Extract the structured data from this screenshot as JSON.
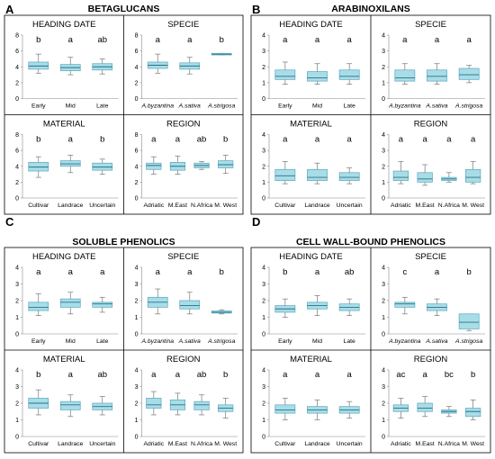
{
  "colors": {
    "box_fill": "#a8dde8",
    "box_stroke": "#5aa8bd",
    "median": "#2a6f85",
    "whisker": "#777777",
    "frame": "#000000"
  },
  "panels": [
    {
      "letter": "A",
      "title": "BETAGLUCANS",
      "subplots": [
        {
          "title": "HEADING DATE",
          "ylim": [
            0,
            8
          ],
          "yticks": [
            0,
            2,
            4,
            6,
            8
          ],
          "categories": [
            "Early",
            "Mid",
            "Late"
          ],
          "letters": [
            "b",
            "a",
            "ab"
          ],
          "boxes": [
            {
              "min": 3.2,
              "q1": 3.7,
              "median": 4.1,
              "q3": 4.6,
              "max": 5.6
            },
            {
              "min": 3.0,
              "q1": 3.5,
              "median": 3.9,
              "q3": 4.3,
              "max": 5.2
            },
            {
              "min": 3.1,
              "q1": 3.6,
              "median": 4.0,
              "q3": 4.4,
              "max": 5.0
            }
          ]
        },
        {
          "title": "SPECIE",
          "ylim": [
            0,
            8
          ],
          "yticks": [
            0,
            2,
            4,
            6,
            8
          ],
          "categories": [
            "A.byzantina",
            "A.sativa",
            "A.strigosa"
          ],
          "letters": [
            "a",
            "a",
            "b"
          ],
          "boxes": [
            {
              "min": 3.2,
              "q1": 3.8,
              "median": 4.2,
              "q3": 4.6,
              "max": 5.6
            },
            {
              "min": 3.1,
              "q1": 3.7,
              "median": 4.1,
              "q3": 4.5,
              "max": 5.2
            },
            {
              "min": 5.5,
              "q1": 5.5,
              "median": 5.6,
              "q3": 5.7,
              "max": 5.7
            }
          ]
        },
        {
          "title": "MATERIAL",
          "ylim": [
            0,
            8
          ],
          "yticks": [
            0,
            2,
            4,
            6,
            8
          ],
          "categories": [
            "Cultivar",
            "Landrace",
            "Uncertain"
          ],
          "letters": [
            "b",
            "a",
            "b"
          ],
          "boxes": [
            {
              "min": 2.6,
              "q1": 3.4,
              "median": 3.9,
              "q3": 4.5,
              "max": 5.2
            },
            {
              "min": 3.2,
              "q1": 4.0,
              "median": 4.3,
              "q3": 4.7,
              "max": 5.4
            },
            {
              "min": 3.0,
              "q1": 3.5,
              "median": 3.9,
              "q3": 4.4,
              "max": 4.9
            }
          ]
        },
        {
          "title": "REGION",
          "ylim": [
            0,
            8
          ],
          "yticks": [
            0,
            2,
            4,
            6,
            8
          ],
          "categories": [
            "Adriatic",
            "M.East",
            "N.Africa",
            "M. West"
          ],
          "letters": [
            "a",
            "a",
            "ab",
            "b"
          ],
          "boxes": [
            {
              "min": 3.0,
              "q1": 3.6,
              "median": 4.1,
              "q3": 4.4,
              "max": 5.2
            },
            {
              "min": 3.0,
              "q1": 3.5,
              "median": 4.0,
              "q3": 4.5,
              "max": 5.3
            },
            {
              "min": 3.6,
              "q1": 3.8,
              "median": 4.1,
              "q3": 4.4,
              "max": 4.6
            },
            {
              "min": 3.1,
              "q1": 3.8,
              "median": 4.2,
              "q3": 4.7,
              "max": 5.4
            }
          ]
        }
      ]
    },
    {
      "letter": "B",
      "title": "ARABINOXILANS",
      "subplots": [
        {
          "title": "HEADING DATE",
          "ylim": [
            0,
            4
          ],
          "yticks": [
            0,
            1,
            2,
            3,
            4
          ],
          "categories": [
            "Early",
            "Mid",
            "Late"
          ],
          "letters": [
            "a",
            "a",
            "a"
          ],
          "boxes": [
            {
              "min": 0.9,
              "q1": 1.2,
              "median": 1.4,
              "q3": 1.8,
              "max": 2.3
            },
            {
              "min": 0.9,
              "q1": 1.1,
              "median": 1.3,
              "q3": 1.7,
              "max": 2.2
            },
            {
              "min": 0.9,
              "q1": 1.2,
              "median": 1.4,
              "q3": 1.8,
              "max": 2.2
            }
          ]
        },
        {
          "title": "SPECIE",
          "ylim": [
            0,
            4
          ],
          "yticks": [
            0,
            1,
            2,
            3,
            4
          ],
          "categories": [
            "A.byzantina",
            "A.sativa",
            "A.strigosa"
          ],
          "letters": [
            "a",
            "a",
            "a"
          ],
          "boxes": [
            {
              "min": 0.9,
              "q1": 1.1,
              "median": 1.3,
              "q3": 1.8,
              "max": 2.2
            },
            {
              "min": 0.9,
              "q1": 1.1,
              "median": 1.4,
              "q3": 1.8,
              "max": 2.2
            },
            {
              "min": 1.0,
              "q1": 1.2,
              "median": 1.5,
              "q3": 1.9,
              "max": 2.1
            }
          ]
        },
        {
          "title": "MATERIAL",
          "ylim": [
            0,
            4
          ],
          "yticks": [
            0,
            1,
            2,
            3,
            4
          ],
          "categories": [
            "Cultivar",
            "Landrace",
            "Uncertain"
          ],
          "letters": [
            "a",
            "a",
            "a"
          ],
          "boxes": [
            {
              "min": 0.9,
              "q1": 1.1,
              "median": 1.4,
              "q3": 1.8,
              "max": 2.3
            },
            {
              "min": 0.9,
              "q1": 1.1,
              "median": 1.3,
              "q3": 1.8,
              "max": 2.2
            },
            {
              "min": 0.9,
              "q1": 1.1,
              "median": 1.3,
              "q3": 1.6,
              "max": 1.9
            }
          ]
        },
        {
          "title": "REGION",
          "ylim": [
            0,
            4
          ],
          "yticks": [
            0,
            1,
            2,
            3,
            4
          ],
          "categories": [
            "Adriatic",
            "M.East",
            "N.Africa",
            "M. West"
          ],
          "letters": [
            "a",
            "a",
            "a",
            "a"
          ],
          "boxes": [
            {
              "min": 0.9,
              "q1": 1.1,
              "median": 1.3,
              "q3": 1.7,
              "max": 2.3
            },
            {
              "min": 0.8,
              "q1": 1.0,
              "median": 1.2,
              "q3": 1.6,
              "max": 2.1
            },
            {
              "min": 1.0,
              "q1": 1.1,
              "median": 1.2,
              "q3": 1.3,
              "max": 1.6
            },
            {
              "min": 0.9,
              "q1": 1.0,
              "median": 1.3,
              "q3": 1.8,
              "max": 2.3
            }
          ]
        }
      ]
    },
    {
      "letter": "C",
      "title": "SOLUBLE PHENOLICS",
      "subplots": [
        {
          "title": "HEADING DATE",
          "ylim": [
            0,
            4
          ],
          "yticks": [
            0,
            1,
            2,
            3,
            4
          ],
          "categories": [
            "Early",
            "Mid",
            "Late"
          ],
          "letters": [
            "a",
            "a",
            "a"
          ],
          "boxes": [
            {
              "min": 1.1,
              "q1": 1.4,
              "median": 1.6,
              "q3": 1.9,
              "max": 2.4
            },
            {
              "min": 1.2,
              "q1": 1.6,
              "median": 1.9,
              "q3": 2.1,
              "max": 2.5
            },
            {
              "min": 1.3,
              "q1": 1.6,
              "median": 1.8,
              "q3": 1.9,
              "max": 2.2
            }
          ]
        },
        {
          "title": "SPECIE",
          "ylim": [
            0,
            4
          ],
          "yticks": [
            0,
            1,
            2,
            3,
            4
          ],
          "categories": [
            "A.byzantina",
            "A.sativa",
            "A.strigosa"
          ],
          "letters": [
            "a",
            "a",
            "b"
          ],
          "boxes": [
            {
              "min": 1.2,
              "q1": 1.6,
              "median": 1.9,
              "q3": 2.2,
              "max": 2.7
            },
            {
              "min": 1.2,
              "q1": 1.5,
              "median": 1.7,
              "q3": 2.0,
              "max": 2.5
            },
            {
              "min": 1.2,
              "q1": 1.25,
              "median": 1.3,
              "q3": 1.38,
              "max": 1.45
            }
          ]
        },
        {
          "title": "MATERIAL",
          "ylim": [
            0,
            4
          ],
          "yticks": [
            0,
            1,
            2,
            3,
            4
          ],
          "categories": [
            "Cultivar",
            "Landrace",
            "Uncertain"
          ],
          "letters": [
            "b",
            "a",
            "ab"
          ],
          "boxes": [
            {
              "min": 1.3,
              "q1": 1.7,
              "median": 2.0,
              "q3": 2.3,
              "max": 2.8
            },
            {
              "min": 1.2,
              "q1": 1.6,
              "median": 1.9,
              "q3": 2.1,
              "max": 2.5
            },
            {
              "min": 1.3,
              "q1": 1.6,
              "median": 1.8,
              "q3": 2.0,
              "max": 2.4
            }
          ]
        },
        {
          "title": "REGION",
          "ylim": [
            0,
            4
          ],
          "yticks": [
            0,
            1,
            2,
            3,
            4
          ],
          "categories": [
            "Adriatic",
            "M.East",
            "N.Africa",
            "M. West"
          ],
          "letters": [
            "a",
            "a",
            "ab",
            "b"
          ],
          "boxes": [
            {
              "min": 1.3,
              "q1": 1.7,
              "median": 1.9,
              "q3": 2.3,
              "max": 2.7
            },
            {
              "min": 1.3,
              "q1": 1.6,
              "median": 1.9,
              "q3": 2.2,
              "max": 2.6
            },
            {
              "min": 1.3,
              "q1": 1.6,
              "median": 1.9,
              "q3": 2.1,
              "max": 2.5
            },
            {
              "min": 1.1,
              "q1": 1.5,
              "median": 1.7,
              "q3": 1.9,
              "max": 2.3
            }
          ]
        }
      ]
    },
    {
      "letter": "D",
      "title": "CELL WALL-BOUND PHENOLICS",
      "subplots": [
        {
          "title": "HEADING DATE",
          "ylim": [
            0,
            4
          ],
          "yticks": [
            0,
            1,
            2,
            3,
            4
          ],
          "categories": [
            "Early",
            "Mid",
            "Late"
          ],
          "letters": [
            "b",
            "a",
            "ab"
          ],
          "boxes": [
            {
              "min": 1.0,
              "q1": 1.3,
              "median": 1.5,
              "q3": 1.7,
              "max": 2.1
            },
            {
              "min": 1.1,
              "q1": 1.5,
              "median": 1.7,
              "q3": 1.9,
              "max": 2.3
            },
            {
              "min": 1.1,
              "q1": 1.4,
              "median": 1.6,
              "q3": 1.8,
              "max": 2.1
            }
          ]
        },
        {
          "title": "SPECIE",
          "ylim": [
            0,
            4
          ],
          "yticks": [
            0,
            1,
            2,
            3,
            4
          ],
          "categories": [
            "A.byzantina",
            "A.sativa",
            "A.strigosa"
          ],
          "letters": [
            "c",
            "a",
            "b"
          ],
          "boxes": [
            {
              "min": 1.2,
              "q1": 1.6,
              "median": 1.8,
              "q3": 1.9,
              "max": 2.2
            },
            {
              "min": 1.1,
              "q1": 1.4,
              "median": 1.6,
              "q3": 1.8,
              "max": 2.1
            },
            {
              "min": 0.2,
              "q1": 0.3,
              "median": 0.7,
              "q3": 1.2,
              "max": 1.2
            }
          ]
        },
        {
          "title": "MATERIAL",
          "ylim": [
            0,
            4
          ],
          "yticks": [
            0,
            1,
            2,
            3,
            4
          ],
          "categories": [
            "Cultivar",
            "Landrace",
            "Uncertain"
          ],
          "letters": [
            "a",
            "a",
            "a"
          ],
          "boxes": [
            {
              "min": 1.0,
              "q1": 1.4,
              "median": 1.6,
              "q3": 1.9,
              "max": 2.3
            },
            {
              "min": 1.0,
              "q1": 1.4,
              "median": 1.6,
              "q3": 1.8,
              "max": 2.2
            },
            {
              "min": 1.1,
              "q1": 1.4,
              "median": 1.6,
              "q3": 1.8,
              "max": 2.1
            }
          ]
        },
        {
          "title": "REGION",
          "ylim": [
            0,
            4
          ],
          "yticks": [
            0,
            1,
            2,
            3,
            4
          ],
          "categories": [
            "Adriatic",
            "M.East",
            "N.Africa",
            "M. West"
          ],
          "letters": [
            "ac",
            "a",
            "bc",
            "b"
          ],
          "boxes": [
            {
              "min": 1.1,
              "q1": 1.5,
              "median": 1.7,
              "q3": 1.9,
              "max": 2.3
            },
            {
              "min": 1.2,
              "q1": 1.5,
              "median": 1.7,
              "q3": 2.0,
              "max": 2.4
            },
            {
              "min": 1.2,
              "q1": 1.4,
              "median": 1.5,
              "q3": 1.6,
              "max": 1.8
            },
            {
              "min": 1.0,
              "q1": 1.2,
              "median": 1.5,
              "q3": 1.7,
              "max": 2.2
            }
          ]
        }
      ]
    }
  ],
  "chart_data": {
    "type": "boxplot",
    "panels": [
      "BETAGLUCANS",
      "ARABINOXILANS",
      "SOLUBLE PHENOLICS",
      "CELL WALL-BOUND PHENOLICS"
    ],
    "subplot_titles": [
      "HEADING DATE",
      "SPECIE",
      "MATERIAL",
      "REGION"
    ],
    "note": ""
  }
}
